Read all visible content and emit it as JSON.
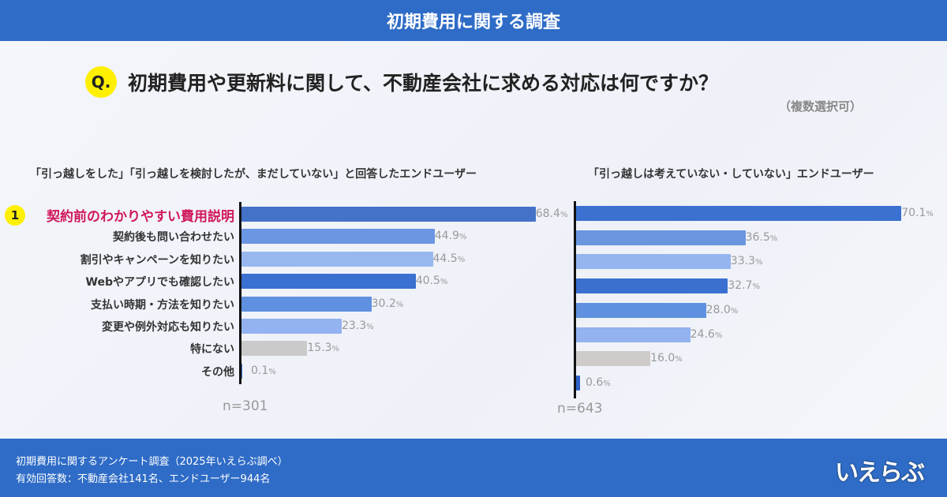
{
  "header": {
    "title": "初期費用に関する調査"
  },
  "question": {
    "badge": "Q.",
    "text": "初期費用や更新料に関して、不動産会社に求める対応は何ですか？",
    "note": "（複数選択可）"
  },
  "footer": {
    "line1": "初期費用に関するアンケート調査（2025年いえらぶ調べ）",
    "line2": "有効回答数：不動産会社141名、エンドユーザー944名",
    "logo": "いえらぶ"
  },
  "rank_badge": "1",
  "chart_data": [
    {
      "type": "bar",
      "orientation": "horizontal",
      "title": "「引っ越しをした」「引っ越しを検討したが、まだしていない」と回答したエンドユーザー",
      "n_label": "n=301",
      "categories": [
        "契約前のわかりやすい費用説明",
        "契約後も問い合わせたい",
        "割引やキャンペーンを知りたい",
        "Webやアプリでも確認したい",
        "支払い時期・方法を知りたい",
        "変更や例外対応も知りたい",
        "特にない",
        "その他"
      ],
      "values": [
        68.4,
        44.9,
        44.5,
        40.5,
        30.2,
        23.3,
        15.3,
        0.1
      ],
      "unit": "%",
      "colors": [
        "#4472c8",
        "#6b96e2",
        "#98b7ef",
        "#3a70d0",
        "#6091e0",
        "#92b2f0",
        "#c9cac9",
        "#3a70d0"
      ]
    },
    {
      "type": "bar",
      "orientation": "horizontal",
      "title": "「引っ越しは考えていない・していない」エンドユーザー",
      "n_label": "n=643",
      "values": [
        70.1,
        36.5,
        33.3,
        32.7,
        28.0,
        24.6,
        16.0,
        0.6
      ],
      "unit": "%",
      "colors": [
        "#3b71d0",
        "#6a96e0",
        "#94b5ef",
        "#3a70d0",
        "#6091e0",
        "#92b2f0",
        "#cfcbcb",
        "#2f62c8"
      ]
    }
  ]
}
